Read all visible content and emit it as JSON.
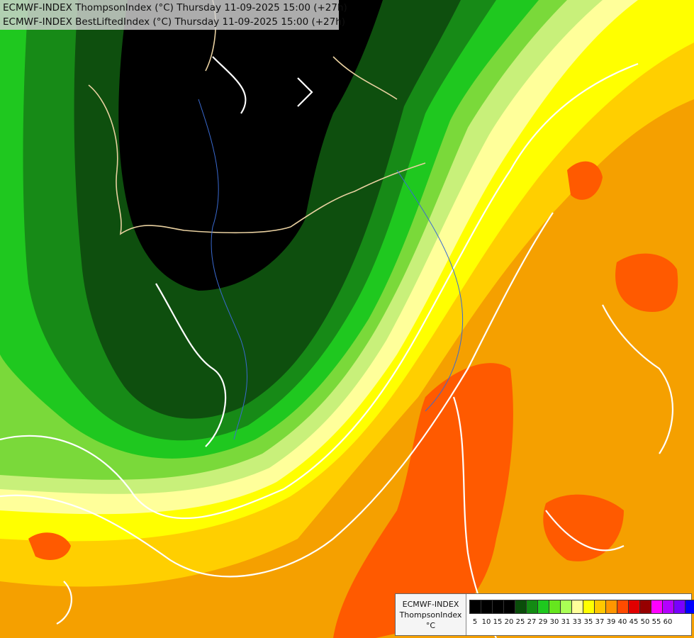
{
  "header": {
    "line1": "ECMWF-INDEX ThompsonIndex (°C) Thursday 11-09-2025 15:00 (+27h)",
    "line2": "ECMWF-INDEX BestLiftedIndex (°C) Thursday 11-09-2025 15:00 (+27h)"
  },
  "legend": {
    "model": "ECMWF-INDEX",
    "name": "ThompsonIndex",
    "unit": "°C",
    "levels": [
      "5",
      "10",
      "15",
      "20",
      "25",
      "27",
      "29",
      "30",
      "31",
      "33",
      "35",
      "37",
      "39",
      "40",
      "45",
      "50",
      "55",
      "60"
    ],
    "colors": [
      "#000000",
      "#000000",
      "#000000",
      "#000000",
      "#0a4d0a",
      "#138a13",
      "#1ec81e",
      "#66e61e",
      "#aaff55",
      "#ffff9a",
      "#ffff00",
      "#ffc800",
      "#ff9600",
      "#ff4b00",
      "#e10000",
      "#960000",
      "#ff00ff",
      "#b400ff",
      "#7800ff",
      "#0000ff"
    ]
  },
  "map_colors": {
    "black": "#000000",
    "dark_green": "#0e4f0e",
    "green": "#178a17",
    "bright_green": "#1fc81f",
    "light_green": "#7ad93a",
    "pale_green": "#c8f07a",
    "pale_yellow": "#ffff9a",
    "yellow": "#ffff00",
    "gold": "#ffcc00",
    "orange": "#ff9a00",
    "red_orange": "#ff5a00"
  }
}
